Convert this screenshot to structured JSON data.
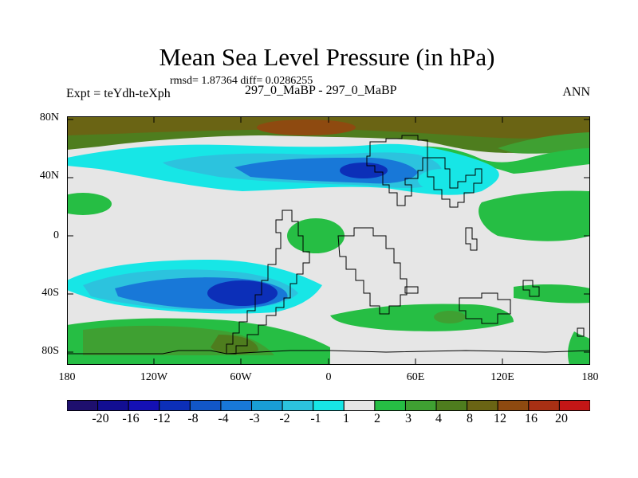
{
  "header": {
    "title": "Mean Sea Level Pressure (in hPa)",
    "stats": "rmsd= 1.87364 diff= 0.0286255",
    "experiment": "Expt = teYdh-teXph",
    "runs": "297_0_MaBP - 297_0_MaBP",
    "season": "ANN"
  },
  "axes": {
    "lat_labels": [
      "80N",
      "40N",
      "0",
      "40S",
      "80S"
    ],
    "lon_labels": [
      "180",
      "120W",
      "60W",
      "0",
      "60E",
      "120E",
      "180"
    ]
  },
  "colorbar": {
    "labels": [
      "-20",
      "-16",
      "-12",
      "-8",
      "-4",
      "-3",
      "-2",
      "-1",
      "1",
      "2",
      "3",
      "4",
      "8",
      "12",
      "16",
      "20"
    ],
    "colors": [
      "#1e0f6e",
      "#120e92",
      "#1410b4",
      "#0c2fb8",
      "#1257c8",
      "#1878d8",
      "#199ed6",
      "#2cc3de",
      "#17e6e6",
      "#e6e6e6",
      "#26be44",
      "#3fa032",
      "#4e7d1e",
      "#6a6414",
      "#8e4a10",
      "#a83014",
      "#c41616"
    ]
  },
  "palette": {
    "ocean_gray": "#e6e6e6",
    "cyan": "#17e6e6",
    "light_blue": "#2cc3de",
    "blue": "#1878d8",
    "dark_blue": "#0c2fb8",
    "green": "#26be44",
    "olive": "#4e7d1e",
    "brown": "#6a6414",
    "dark_brown": "#8e4a10"
  }
}
